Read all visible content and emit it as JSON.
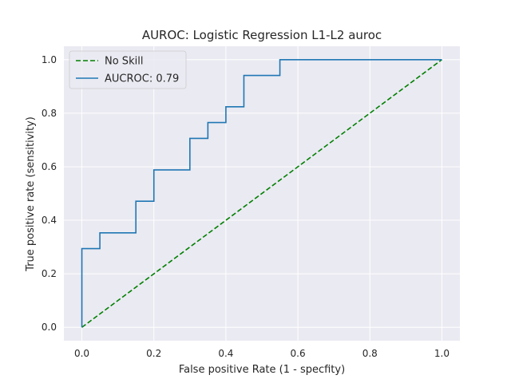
{
  "chart_data": {
    "type": "line",
    "title": "AUROC: Logistic Regression L1-L2 auroc",
    "xlabel": "False positive Rate (1 - specfity)",
    "ylabel": "True positive rate (sensitivity)",
    "xlim": [
      -0.05,
      1.05
    ],
    "ylim": [
      -0.05,
      1.05
    ],
    "xticks": [
      0.0,
      0.2,
      0.4,
      0.6,
      0.8,
      1.0
    ],
    "yticks": [
      0.0,
      0.2,
      0.4,
      0.6,
      0.8,
      1.0
    ],
    "xtick_labels": [
      "0.0",
      "0.2",
      "0.4",
      "0.6",
      "0.8",
      "1.0"
    ],
    "ytick_labels": [
      "0.0",
      "0.2",
      "0.4",
      "0.6",
      "0.8",
      "1.0"
    ],
    "grid": true,
    "background": "#EAEAF2",
    "legend_position": "top-left",
    "series": [
      {
        "name": "No Skill",
        "color": "#008000",
        "style": "dashed",
        "x": [
          0.0,
          1.0
        ],
        "y": [
          0.0,
          1.0
        ]
      },
      {
        "name": "AUCROC: 0.79",
        "color": "#1f77b4",
        "style": "solid",
        "x": [
          0.0,
          0.0,
          0.05,
          0.05,
          0.15,
          0.15,
          0.2,
          0.2,
          0.3,
          0.3,
          0.35,
          0.35,
          0.4,
          0.4,
          0.45,
          0.45,
          0.55,
          0.55,
          1.0
        ],
        "y": [
          0.0,
          0.294,
          0.294,
          0.353,
          0.353,
          0.471,
          0.471,
          0.588,
          0.588,
          0.706,
          0.706,
          0.765,
          0.765,
          0.824,
          0.824,
          0.941,
          0.941,
          1.0,
          1.0
        ]
      }
    ]
  }
}
